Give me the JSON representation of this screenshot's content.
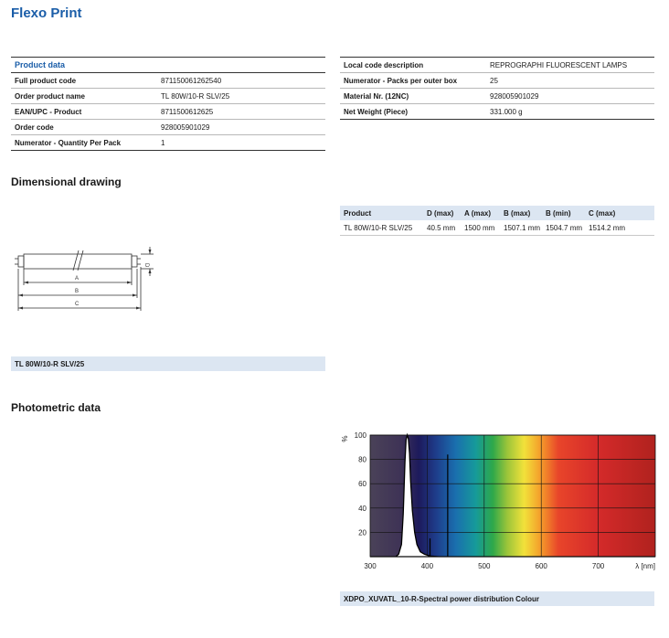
{
  "page_title": "Flexo Print",
  "product_data": {
    "heading": "Product data",
    "rows": [
      {
        "label": "Full product code",
        "value": "871150061262540"
      },
      {
        "label": "Order product name",
        "value": "TL 80W/10-R SLV/25"
      },
      {
        "label": "EAN/UPC - Product",
        "value": "8711500612625"
      },
      {
        "label": "Order code",
        "value": "928005901029"
      },
      {
        "label": "Numerator - Quantity Per Pack",
        "value": "1"
      }
    ]
  },
  "local_data": {
    "rows": [
      {
        "label": "Local code description",
        "value": "REPROGRAPHI FLUORESCENT LAMPS"
      },
      {
        "label": "Numerator - Packs per outer box",
        "value": "25"
      },
      {
        "label": "Material Nr. (12NC)",
        "value": "928005901029"
      },
      {
        "label": "Net Weight (Piece)",
        "value": "331.000 g"
      }
    ]
  },
  "dimensional": {
    "heading": "Dimensional drawing",
    "table_headers": [
      "Product",
      "D (max)",
      "A (max)",
      "B (max)",
      "B (min)",
      "C (max)"
    ],
    "table_row": [
      "TL 80W/10-R SLV/25",
      "40.5 mm",
      "1500 mm",
      "1507.1 mm",
      "1504.7 mm",
      "1514.2 mm"
    ],
    "drawing_labels": {
      "a": "A",
      "b": "B",
      "c": "C",
      "d": "D"
    },
    "caption": "TL 80W/10-R SLV/25"
  },
  "photometric": {
    "heading": "Photometric data",
    "caption": "XDPO_XUVATL_10-R-Spectral power distribution Colour"
  },
  "chart_data": {
    "type": "line",
    "title": "",
    "xlabel": "λ [nm]",
    "ylabel": "%",
    "xlim": [
      300,
      800
    ],
    "ylim": [
      0,
      100
    ],
    "x_ticks": [
      "300",
      "400",
      "500",
      "600",
      "700"
    ],
    "y_ticks": [
      "20",
      "40",
      "60",
      "80",
      "100"
    ],
    "series": [
      {
        "x": [
          300,
          345,
          350,
          355,
          358,
          361,
          363,
          365,
          367,
          369,
          371,
          374,
          378,
          382,
          388,
          395,
          405,
          420,
          800
        ],
        "y": [
          0,
          0,
          2,
          10,
          35,
          78,
          96,
          100,
          97,
          85,
          62,
          38,
          20,
          10,
          4,
          2,
          0.5,
          0,
          0
        ]
      }
    ],
    "spectral_lines": [
      {
        "x": 405,
        "y": 15
      },
      {
        "x": 436,
        "y": 84
      }
    ],
    "grid": true
  }
}
